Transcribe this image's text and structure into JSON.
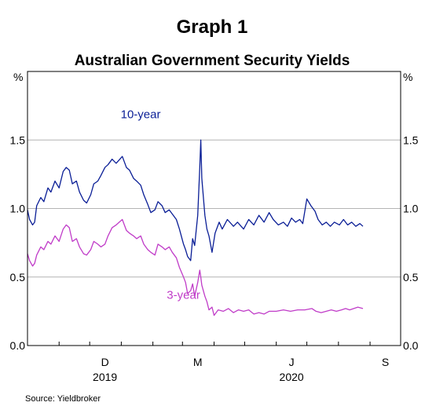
{
  "chart_data": {
    "type": "line",
    "graph_label": "Graph 1",
    "title": "Australian Government Security Yields",
    "y_unit_left": "%",
    "y_unit_right": "%",
    "ylim": [
      0,
      2
    ],
    "yticks": [
      0.0,
      0.5,
      1.0,
      1.5
    ],
    "ytick_labels": [
      "0.0",
      "0.5",
      "1.0",
      "1.5"
    ],
    "grid": true,
    "xlim": [
      "2019-10-01",
      "2020-10-01"
    ],
    "month_ticks": [
      "2019-11-01",
      "2019-12-01",
      "2020-01-01",
      "2020-02-01",
      "2020-03-01",
      "2020-04-01",
      "2020-05-01",
      "2020-06-01",
      "2020-07-01",
      "2020-08-01",
      "2020-09-01"
    ],
    "x_labels": [
      {
        "label": "D",
        "date": "2019-12-16"
      },
      {
        "label": "M",
        "date": "2020-03-16"
      },
      {
        "label": "J",
        "date": "2020-06-16"
      },
      {
        "label": "S",
        "date": "2020-09-16"
      }
    ],
    "year_labels": [
      {
        "label": "2019",
        "date": "2019-12-16"
      },
      {
        "label": "2020",
        "date": "2020-06-16"
      }
    ],
    "series": [
      {
        "name": "10-year",
        "color": "#0a1e96",
        "label_date": "2020-01-20",
        "label_value": 1.66,
        "points": [
          [
            "2019-10-01",
            0.99
          ],
          [
            "2019-10-03",
            0.92
          ],
          [
            "2019-10-06",
            0.88
          ],
          [
            "2019-10-08",
            0.9
          ],
          [
            "2019-10-10",
            1.02
          ],
          [
            "2019-10-14",
            1.08
          ],
          [
            "2019-10-17",
            1.05
          ],
          [
            "2019-10-21",
            1.15
          ],
          [
            "2019-10-24",
            1.12
          ],
          [
            "2019-10-28",
            1.2
          ],
          [
            "2019-11-01",
            1.15
          ],
          [
            "2019-11-05",
            1.27
          ],
          [
            "2019-11-08",
            1.3
          ],
          [
            "2019-11-11",
            1.28
          ],
          [
            "2019-11-14",
            1.18
          ],
          [
            "2019-11-18",
            1.2
          ],
          [
            "2019-11-21",
            1.12
          ],
          [
            "2019-11-25",
            1.06
          ],
          [
            "2019-11-28",
            1.04
          ],
          [
            "2019-12-02",
            1.1
          ],
          [
            "2019-12-05",
            1.18
          ],
          [
            "2019-12-09",
            1.2
          ],
          [
            "2019-12-12",
            1.24
          ],
          [
            "2019-12-16",
            1.3
          ],
          [
            "2019-12-19",
            1.32
          ],
          [
            "2019-12-23",
            1.36
          ],
          [
            "2019-12-27",
            1.33
          ],
          [
            "2020-01-02",
            1.38
          ],
          [
            "2020-01-06",
            1.3
          ],
          [
            "2020-01-09",
            1.28
          ],
          [
            "2020-01-13",
            1.22
          ],
          [
            "2020-01-16",
            1.2
          ],
          [
            "2020-01-20",
            1.17
          ],
          [
            "2020-01-23",
            1.1
          ],
          [
            "2020-01-27",
            1.03
          ],
          [
            "2020-01-30",
            0.97
          ],
          [
            "2020-02-03",
            0.99
          ],
          [
            "2020-02-06",
            1.05
          ],
          [
            "2020-02-10",
            1.02
          ],
          [
            "2020-02-13",
            0.97
          ],
          [
            "2020-02-17",
            0.99
          ],
          [
            "2020-02-20",
            0.96
          ],
          [
            "2020-02-24",
            0.92
          ],
          [
            "2020-02-27",
            0.85
          ],
          [
            "2020-03-02",
            0.74
          ],
          [
            "2020-03-04",
            0.7
          ],
          [
            "2020-03-06",
            0.65
          ],
          [
            "2020-03-09",
            0.62
          ],
          [
            "2020-03-11",
            0.78
          ],
          [
            "2020-03-13",
            0.73
          ],
          [
            "2020-03-16",
            0.95
          ],
          [
            "2020-03-18",
            1.3
          ],
          [
            "2020-03-19",
            1.5
          ],
          [
            "2020-03-20",
            1.22
          ],
          [
            "2020-03-23",
            0.95
          ],
          [
            "2020-03-25",
            0.85
          ],
          [
            "2020-03-27",
            0.8
          ],
          [
            "2020-03-30",
            0.68
          ],
          [
            "2020-04-02",
            0.82
          ],
          [
            "2020-04-06",
            0.9
          ],
          [
            "2020-04-09",
            0.85
          ],
          [
            "2020-04-14",
            0.92
          ],
          [
            "2020-04-20",
            0.87
          ],
          [
            "2020-04-24",
            0.9
          ],
          [
            "2020-04-30",
            0.85
          ],
          [
            "2020-05-05",
            0.92
          ],
          [
            "2020-05-10",
            0.88
          ],
          [
            "2020-05-15",
            0.95
          ],
          [
            "2020-05-20",
            0.9
          ],
          [
            "2020-05-25",
            0.97
          ],
          [
            "2020-05-29",
            0.92
          ],
          [
            "2020-06-03",
            0.88
          ],
          [
            "2020-06-08",
            0.9
          ],
          [
            "2020-06-12",
            0.87
          ],
          [
            "2020-06-16",
            0.93
          ],
          [
            "2020-06-20",
            0.9
          ],
          [
            "2020-06-24",
            0.92
          ],
          [
            "2020-06-27",
            0.89
          ],
          [
            "2020-07-01",
            1.07
          ],
          [
            "2020-07-05",
            1.02
          ],
          [
            "2020-07-09",
            0.98
          ],
          [
            "2020-07-12",
            0.92
          ],
          [
            "2020-07-16",
            0.88
          ],
          [
            "2020-07-20",
            0.9
          ],
          [
            "2020-07-24",
            0.87
          ],
          [
            "2020-07-28",
            0.9
          ],
          [
            "2020-08-02",
            0.88
          ],
          [
            "2020-08-06",
            0.92
          ],
          [
            "2020-08-10",
            0.88
          ],
          [
            "2020-08-14",
            0.9
          ],
          [
            "2020-08-18",
            0.87
          ],
          [
            "2020-08-22",
            0.89
          ],
          [
            "2020-08-25",
            0.87
          ]
        ]
      },
      {
        "name": "3-year",
        "color": "#c03cc8",
        "label_date": "2020-03-02",
        "label_value": 0.34,
        "points": [
          [
            "2019-10-01",
            0.67
          ],
          [
            "2019-10-03",
            0.62
          ],
          [
            "2019-10-06",
            0.58
          ],
          [
            "2019-10-08",
            0.6
          ],
          [
            "2019-10-10",
            0.66
          ],
          [
            "2019-10-14",
            0.72
          ],
          [
            "2019-10-17",
            0.7
          ],
          [
            "2019-10-21",
            0.76
          ],
          [
            "2019-10-24",
            0.74
          ],
          [
            "2019-10-28",
            0.8
          ],
          [
            "2019-11-01",
            0.76
          ],
          [
            "2019-11-05",
            0.85
          ],
          [
            "2019-11-08",
            0.88
          ],
          [
            "2019-11-11",
            0.86
          ],
          [
            "2019-11-14",
            0.76
          ],
          [
            "2019-11-18",
            0.78
          ],
          [
            "2019-11-21",
            0.72
          ],
          [
            "2019-11-25",
            0.67
          ],
          [
            "2019-11-28",
            0.66
          ],
          [
            "2019-12-02",
            0.7
          ],
          [
            "2019-12-05",
            0.76
          ],
          [
            "2019-12-09",
            0.74
          ],
          [
            "2019-12-12",
            0.72
          ],
          [
            "2019-12-16",
            0.74
          ],
          [
            "2019-12-19",
            0.8
          ],
          [
            "2019-12-23",
            0.86
          ],
          [
            "2019-12-27",
            0.88
          ],
          [
            "2020-01-02",
            0.92
          ],
          [
            "2020-01-06",
            0.84
          ],
          [
            "2020-01-09",
            0.82
          ],
          [
            "2020-01-13",
            0.8
          ],
          [
            "2020-01-16",
            0.78
          ],
          [
            "2020-01-20",
            0.8
          ],
          [
            "2020-01-23",
            0.74
          ],
          [
            "2020-01-27",
            0.7
          ],
          [
            "2020-01-30",
            0.68
          ],
          [
            "2020-02-03",
            0.66
          ],
          [
            "2020-02-06",
            0.74
          ],
          [
            "2020-02-10",
            0.72
          ],
          [
            "2020-02-13",
            0.7
          ],
          [
            "2020-02-17",
            0.72
          ],
          [
            "2020-02-20",
            0.68
          ],
          [
            "2020-02-24",
            0.64
          ],
          [
            "2020-02-27",
            0.57
          ],
          [
            "2020-03-02",
            0.5
          ],
          [
            "2020-03-04",
            0.46
          ],
          [
            "2020-03-06",
            0.38
          ],
          [
            "2020-03-09",
            0.4
          ],
          [
            "2020-03-11",
            0.45
          ],
          [
            "2020-03-13",
            0.36
          ],
          [
            "2020-03-16",
            0.46
          ],
          [
            "2020-03-18",
            0.55
          ],
          [
            "2020-03-19",
            0.5
          ],
          [
            "2020-03-20",
            0.44
          ],
          [
            "2020-03-23",
            0.36
          ],
          [
            "2020-03-25",
            0.32
          ],
          [
            "2020-03-27",
            0.26
          ],
          [
            "2020-03-30",
            0.28
          ],
          [
            "2020-04-01",
            0.22
          ],
          [
            "2020-04-05",
            0.26
          ],
          [
            "2020-04-10",
            0.25
          ],
          [
            "2020-04-15",
            0.27
          ],
          [
            "2020-04-20",
            0.24
          ],
          [
            "2020-04-25",
            0.26
          ],
          [
            "2020-04-30",
            0.25
          ],
          [
            "2020-05-05",
            0.26
          ],
          [
            "2020-05-10",
            0.23
          ],
          [
            "2020-05-15",
            0.24
          ],
          [
            "2020-05-20",
            0.23
          ],
          [
            "2020-05-25",
            0.25
          ],
          [
            "2020-06-01",
            0.25
          ],
          [
            "2020-06-08",
            0.26
          ],
          [
            "2020-06-15",
            0.25
          ],
          [
            "2020-06-22",
            0.26
          ],
          [
            "2020-06-29",
            0.26
          ],
          [
            "2020-07-06",
            0.27
          ],
          [
            "2020-07-10",
            0.25
          ],
          [
            "2020-07-15",
            0.24
          ],
          [
            "2020-07-20",
            0.25
          ],
          [
            "2020-07-25",
            0.26
          ],
          [
            "2020-07-30",
            0.25
          ],
          [
            "2020-08-04",
            0.26
          ],
          [
            "2020-08-08",
            0.27
          ],
          [
            "2020-08-12",
            0.26
          ],
          [
            "2020-08-16",
            0.27
          ],
          [
            "2020-08-20",
            0.28
          ],
          [
            "2020-08-25",
            0.27
          ]
        ]
      }
    ],
    "source": "Source:   Yieldbroker"
  }
}
